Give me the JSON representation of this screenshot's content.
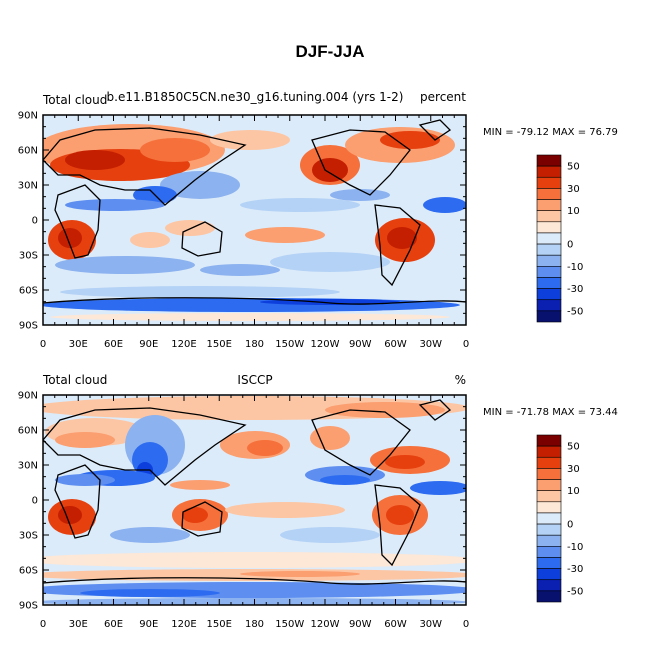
{
  "title": "DJF-JJA",
  "lat_ticks": [
    "90N",
    "60N",
    "30N",
    "0",
    "30S",
    "60S",
    "90S"
  ],
  "lon_ticks": [
    "0",
    "30E",
    "60E",
    "90E",
    "120E",
    "150E",
    "180",
    "150W",
    "120W",
    "90W",
    "60W",
    "30W",
    "0"
  ],
  "colorbar": {
    "labels": [
      "50",
      "30",
      "10",
      "0",
      "-10",
      "-30",
      "-50"
    ],
    "colors": [
      "#7a0000",
      "#c41f00",
      "#e6400f",
      "#f5703a",
      "#fb9e70",
      "#fcc6a4",
      "#fde7d6",
      "#dcebfa",
      "#b4d2f5",
      "#8cb2ef",
      "#5e8ff0",
      "#2d6cf0",
      "#0d3fdc",
      "#0b1fb0",
      "#08126e"
    ]
  },
  "panels": [
    {
      "left_label": "Total cloud",
      "center_label": "b.e11.B1850C5CN.ne30_g16.tuning.004 (yrs 1-2)",
      "right_label": "percent",
      "min_max": "MIN = -79.12 MAX =  76.79"
    },
    {
      "left_label": "Total cloud",
      "center_label": "ISCCP",
      "right_label": "%",
      "min_max": "MIN = -71.78 MAX =  73.44"
    }
  ]
}
